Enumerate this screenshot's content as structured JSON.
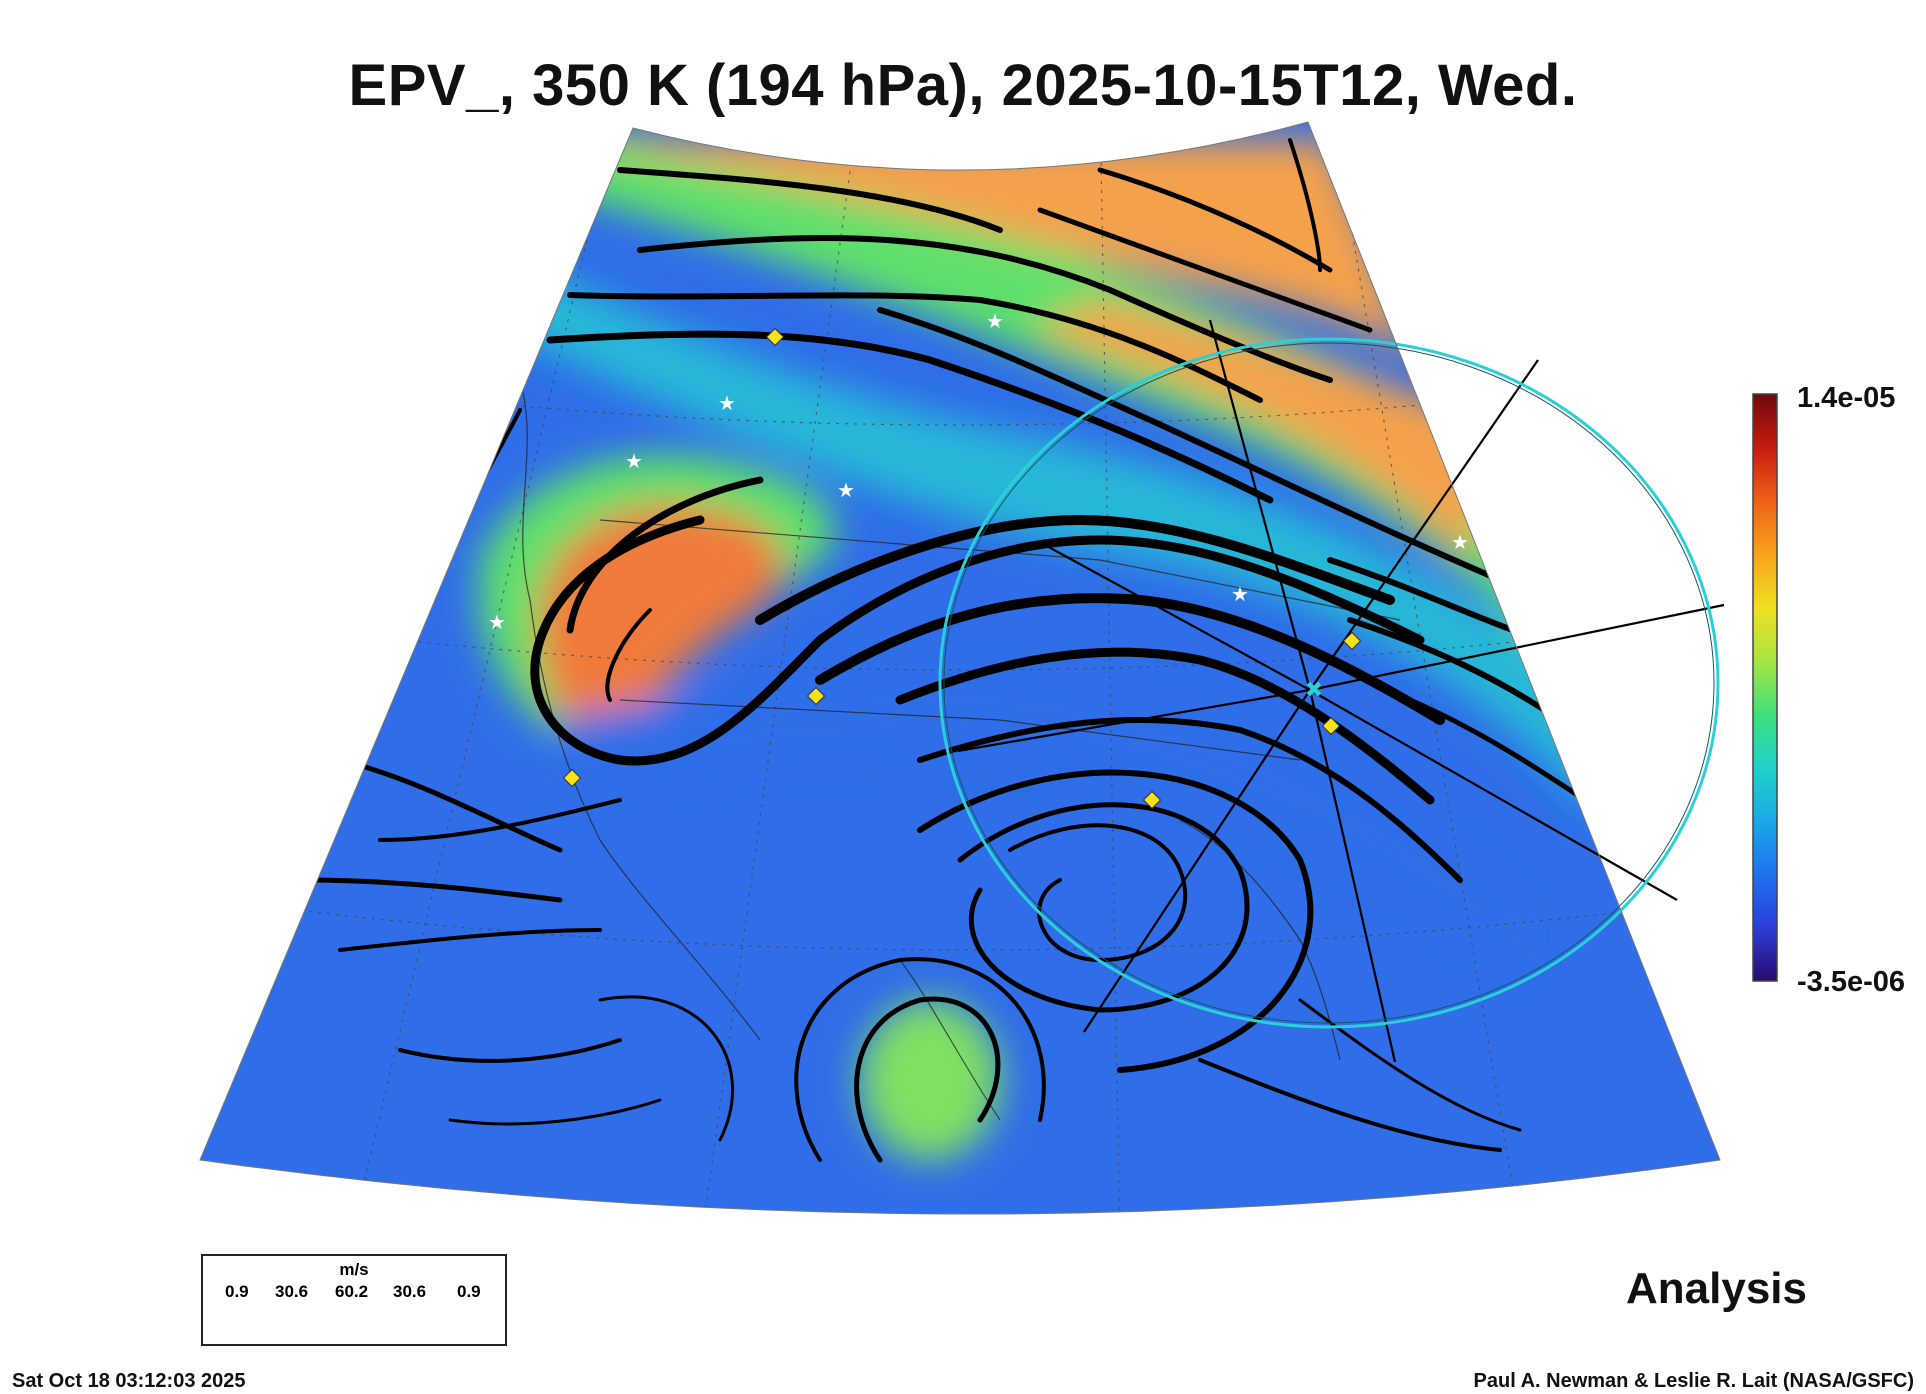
{
  "title": "EPV_, 350 K (194 hPa), 2025-10-15T12, Wed.",
  "colorbar": {
    "max_label": "1.4e-05",
    "min_label": "-3.5e-06",
    "stops": [
      "#2a0a6e",
      "#2b3fd8",
      "#1e72f0",
      "#1aa8e8",
      "#1fd2c8",
      "#3de07a",
      "#a6e640",
      "#f0e020",
      "#f7a21c",
      "#f06018",
      "#c81a10",
      "#6e0a0a"
    ]
  },
  "field_colors": {
    "low": "#2f6ee8",
    "mid": "#28b8d8",
    "green": "#5fe06c",
    "high": "#f4a14c",
    "peak": "#f07a3a"
  },
  "wind_legend": {
    "unit": "m/s",
    "values": [
      "0.9",
      "30.6",
      "60.2",
      "30.6",
      "0.9"
    ]
  },
  "analysis_label": "Analysis",
  "footer": {
    "timestamp": "Sat Oct 18 03:12:03 2025",
    "credit": "Paul A. Newman & Leslie R. Lait (NASA/GSFC)"
  },
  "markers": {
    "star_color": "#ffffff",
    "diamond_color": "#f4e21a",
    "circle_color": "#2ad0d8"
  }
}
